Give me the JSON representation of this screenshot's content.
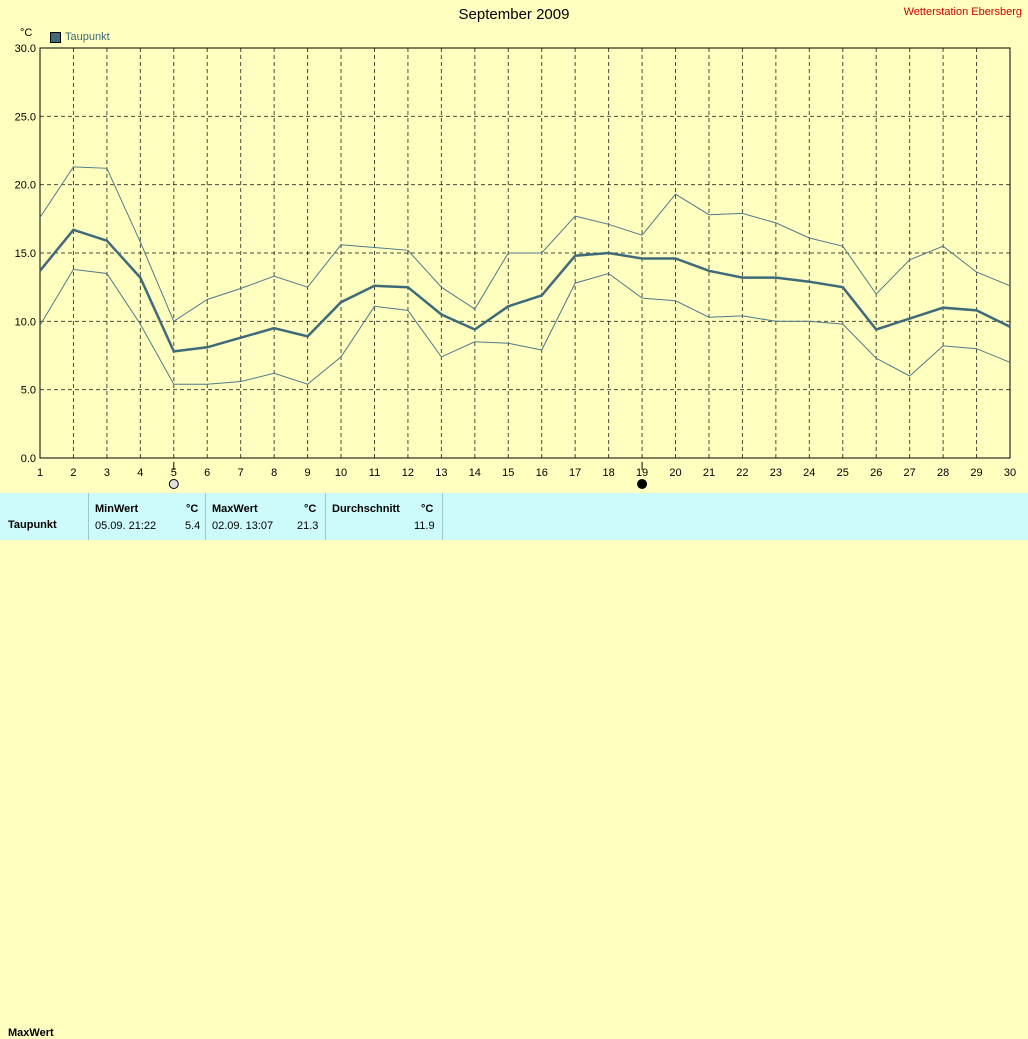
{
  "header": {
    "title": "September 2009",
    "station": "Wetterstation Ebersberg",
    "unit": "°C"
  },
  "legend": {
    "label": "Taupunkt"
  },
  "chart_data": {
    "type": "line",
    "title": "September 2009",
    "ylabel": "°C",
    "ylim": [
      0,
      30
    ],
    "yticks": [
      "0.0",
      "5.0",
      "10.0",
      "15.0",
      "20.0",
      "25.0",
      "30.0"
    ],
    "grid": true,
    "legend_position": "top-left",
    "x": [
      1,
      2,
      3,
      4,
      5,
      6,
      7,
      8,
      9,
      10,
      11,
      12,
      13,
      14,
      15,
      16,
      17,
      18,
      19,
      20,
      21,
      22,
      23,
      24,
      25,
      26,
      27,
      28,
      29,
      30
    ],
    "series": [
      {
        "name": "Taupunkt",
        "role": "mean",
        "values": [
          13.7,
          16.7,
          15.9,
          13.2,
          7.8,
          8.1,
          8.8,
          9.5,
          8.9,
          11.4,
          12.6,
          12.5,
          10.5,
          9.4,
          11.1,
          11.9,
          14.8,
          15.0,
          14.6,
          14.6,
          13.7,
          13.2,
          13.2,
          12.9,
          12.5,
          9.4,
          10.2,
          11.0,
          10.8,
          9.6
        ]
      },
      {
        "role": "max",
        "values": [
          17.6,
          21.3,
          21.2,
          15.8,
          10.0,
          11.6,
          12.4,
          13.3,
          12.5,
          15.6,
          15.4,
          15.2,
          12.5,
          10.9,
          15.0,
          15.0,
          17.7,
          17.1,
          16.3,
          19.3,
          17.8,
          17.9,
          17.2,
          16.1,
          15.5,
          12.0,
          14.5,
          15.5,
          13.6,
          12.6
        ]
      },
      {
        "role": "min",
        "values": [
          9.7,
          13.8,
          13.5,
          9.8,
          5.4,
          5.4,
          5.6,
          6.2,
          5.4,
          7.4,
          11.1,
          10.8,
          7.4,
          8.5,
          8.4,
          7.9,
          12.8,
          13.5,
          11.7,
          11.5,
          10.3,
          10.4,
          10.0,
          10.0,
          9.8,
          7.3,
          6.0,
          8.2,
          8.0,
          7.0
        ]
      }
    ],
    "colors": {
      "mean": "#3f6a7a",
      "band": "#4f7a8a",
      "grid": "#000000"
    },
    "markers": [
      {
        "day": 5,
        "icon": "full-moon-icon"
      },
      {
        "day": 19,
        "icon": "new-moon-icon"
      }
    ]
  },
  "stats": {
    "row_label": "Taupunkt",
    "row2_label": "MaxWert",
    "min": {
      "header": "MinWert",
      "unit": "°C",
      "when": "05.09.  21:22",
      "value": "5.4"
    },
    "max": {
      "header": "MaxWert",
      "unit": "°C",
      "when": "02.09.  13:07",
      "value": "21.3"
    },
    "avg": {
      "header": "Durchschnitt",
      "unit": "°C",
      "value": "11.9"
    }
  }
}
